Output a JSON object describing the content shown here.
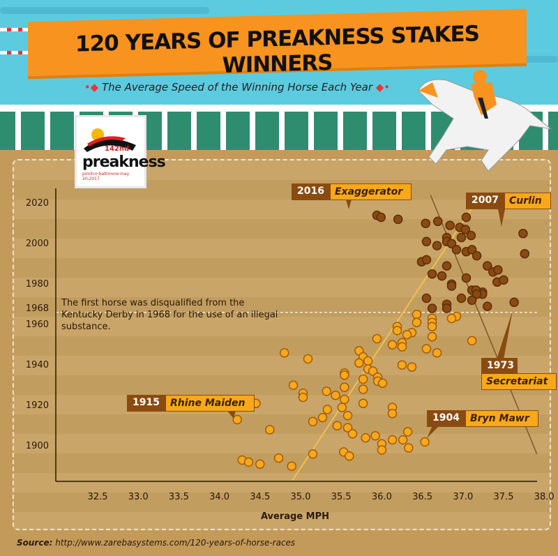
{
  "header": {
    "title": "120 YEARS OF PREAKNESS STAKES WINNERS",
    "subtitle": "The Average Speed of the Winning Horse Each Year"
  },
  "logo": {
    "text": "preakness",
    "number": "142nd",
    "sub": "pimlico·baltimore·may 20,2017"
  },
  "annotation": "The first horse was disqualified from the Kentucky Derby in 1968 for the use of an illegal substance.",
  "source": {
    "label": "Source:",
    "url": "http://www.zarebasystems.com/120-years-of-horse-races"
  },
  "colors": {
    "before_1968": "#f7a81b",
    "after_1968": "#8b4a12",
    "trend": "#f2c04a",
    "secretariat_line": "#7a5a2a",
    "sky": "#5ccbe0",
    "banner": "#f7931e"
  },
  "highlights": [
    {
      "year": "2016",
      "name": "Exaggerator"
    },
    {
      "year": "2007",
      "name": "Curlin"
    },
    {
      "year": "1973",
      "name": "Secretariat"
    },
    {
      "year": "1915",
      "name": "Rhine Maiden"
    },
    {
      "year": "1904",
      "name": "Bryn Mawr"
    }
  ],
  "chart_data": {
    "type": "scatter",
    "title": "120 YEARS OF PREAKNESS STAKES WINNERS",
    "subtitle": "The Average Speed of the Winning Horse Each Year",
    "xlabel": "Average MPH",
    "ylabel": "",
    "xlim": [
      32,
      38.1
    ],
    "ylim": [
      1885,
      2025
    ],
    "xticks": [
      "32.5",
      "33.0",
      "33.5",
      "34.0",
      "34.5",
      "35.0",
      "35.5",
      "36.0",
      "36.5",
      "37.0",
      "37.5",
      "38.0"
    ],
    "yticks": [
      "1900",
      "1920",
      "1940",
      "1960",
      "1968",
      "1980",
      "2000",
      "2020"
    ],
    "reference_line": {
      "year": 1968
    },
    "trend_line": [
      [
        34.9,
        1885
      ],
      [
        37.2,
        2025
      ]
    ],
    "secretariat_line": [
      [
        36.6,
        2026
      ],
      [
        37.91,
        1898
      ]
    ],
    "points": [
      [
        35.94,
        2016
      ],
      [
        35.99,
        2015
      ],
      [
        36.2,
        2014
      ],
      [
        36.54,
        2012
      ],
      [
        36.69,
        2013
      ],
      [
        36.84,
        2011
      ],
      [
        36.96,
        2010
      ],
      [
        37.04,
        2015
      ],
      [
        37.03,
        2009
      ],
      [
        37.1,
        2006
      ],
      [
        36.98,
        2005
      ],
      [
        36.8,
        2005
      ],
      [
        36.8,
        2003
      ],
      [
        36.86,
        2002
      ],
      [
        36.92,
        1999
      ],
      [
        36.55,
        2003
      ],
      [
        36.68,
        2001
      ],
      [
        37.74,
        2007
      ],
      [
        37.04,
        1998
      ],
      [
        37.11,
        1999
      ],
      [
        37.17,
        1996
      ],
      [
        37.76,
        1997
      ],
      [
        36.49,
        1993
      ],
      [
        36.55,
        1994
      ],
      [
        36.8,
        1991
      ],
      [
        37.3,
        1991
      ],
      [
        37.37,
        1988
      ],
      [
        37.43,
        1989
      ],
      [
        36.62,
        1987
      ],
      [
        36.74,
        1986
      ],
      [
        37.04,
        1985
      ],
      [
        37.42,
        1983
      ],
      [
        37.5,
        1984
      ],
      [
        36.86,
        1982
      ],
      [
        36.86,
        1981
      ],
      [
        37.11,
        1979
      ],
      [
        37.24,
        1978
      ],
      [
        37.24,
        1977
      ],
      [
        37.16,
        1979
      ],
      [
        37.17,
        1977
      ],
      [
        36.98,
        1975
      ],
      [
        37.11,
        1974
      ],
      [
        37.3,
        1971
      ],
      [
        37.63,
        1973
      ],
      [
        36.55,
        1975
      ],
      [
        36.62,
        1970
      ],
      [
        36.8,
        1972
      ],
      [
        36.8,
        1970
      ],
      [
        36.43,
        1967
      ],
      [
        36.43,
        1963
      ],
      [
        36.62,
        1965
      ],
      [
        36.62,
        1963
      ],
      [
        36.62,
        1961
      ],
      [
        36.92,
        1966
      ],
      [
        36.86,
        1965
      ],
      [
        36.62,
        1956
      ],
      [
        36.19,
        1961
      ],
      [
        36.19,
        1959
      ],
      [
        36.37,
        1958
      ],
      [
        36.31,
        1957
      ],
      [
        35.94,
        1955
      ],
      [
        37.11,
        1954
      ],
      [
        36.13,
        1952
      ],
      [
        36.25,
        1953
      ],
      [
        36.25,
        1951
      ],
      [
        36.55,
        1950
      ],
      [
        36.68,
        1948
      ],
      [
        36.25,
        1942
      ],
      [
        36.37,
        1941
      ],
      [
        34.8,
        1948
      ],
      [
        35.09,
        1945
      ],
      [
        35.72,
        1949
      ],
      [
        35.77,
        1946
      ],
      [
        35.83,
        1944
      ],
      [
        35.72,
        1943
      ],
      [
        35.83,
        1940
      ],
      [
        35.89,
        1939
      ],
      [
        35.95,
        1936
      ],
      [
        35.95,
        1934
      ],
      [
        36.01,
        1933
      ],
      [
        35.54,
        1938
      ],
      [
        35.54,
        1937
      ],
      [
        35.77,
        1935
      ],
      [
        35.54,
        1931
      ],
      [
        35.77,
        1930
      ],
      [
        34.91,
        1932
      ],
      [
        35.03,
        1928
      ],
      [
        35.03,
        1926
      ],
      [
        35.32,
        1929
      ],
      [
        35.43,
        1927
      ],
      [
        35.54,
        1925
      ],
      [
        35.51,
        1921
      ],
      [
        35.77,
        1923
      ],
      [
        34.45,
        1923
      ],
      [
        36.13,
        1921
      ],
      [
        36.13,
        1918
      ],
      [
        34.22,
        1915
      ],
      [
        35.33,
        1920
      ],
      [
        35.27,
        1916
      ],
      [
        35.15,
        1914
      ],
      [
        35.58,
        1917
      ],
      [
        35.45,
        1912
      ],
      [
        35.58,
        1911
      ],
      [
        35.64,
        1908
      ],
      [
        34.62,
        1910
      ],
      [
        35.8,
        1906
      ],
      [
        35.92,
        1907
      ],
      [
        36.0,
        1903
      ],
      [
        36.0,
        1900
      ],
      [
        36.13,
        1905
      ],
      [
        36.26,
        1905
      ],
      [
        36.33,
        1901
      ],
      [
        36.32,
        1909
      ],
      [
        36.53,
        1904
      ],
      [
        35.53,
        1899
      ],
      [
        35.6,
        1897
      ],
      [
        35.15,
        1898
      ],
      [
        34.28,
        1895
      ],
      [
        34.36,
        1894
      ],
      [
        34.5,
        1893
      ],
      [
        34.73,
        1896
      ],
      [
        34.89,
        1892
      ]
    ]
  }
}
